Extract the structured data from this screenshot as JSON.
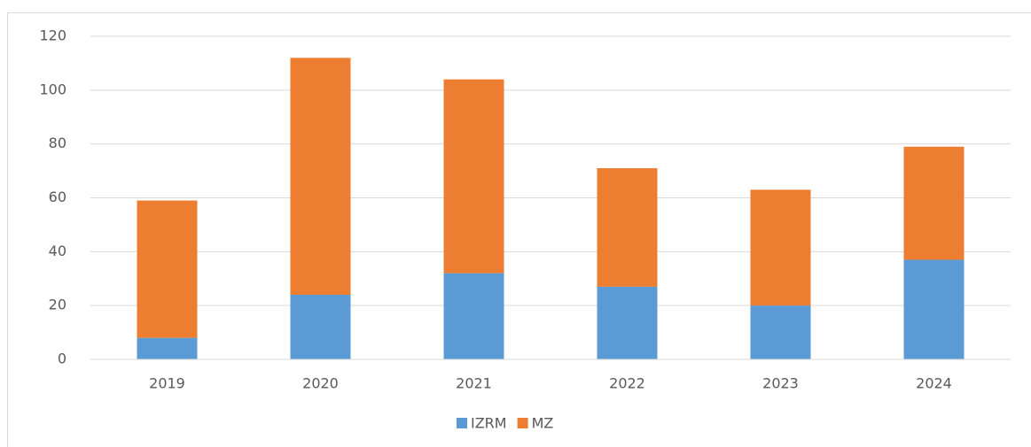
{
  "chart_data": {
    "type": "bar",
    "stacked": true,
    "categories": [
      "2019",
      "2020",
      "2021",
      "2022",
      "2023",
      "2024"
    ],
    "series": [
      {
        "name": "IZRM",
        "color": "#5b9bd5",
        "values": [
          8,
          24,
          32,
          27,
          20,
          37
        ]
      },
      {
        "name": "MZ",
        "color": "#ed7d31",
        "values": [
          51,
          88,
          72,
          44,
          43,
          42
        ]
      }
    ],
    "ylim": [
      0,
      120
    ],
    "yticks": [
      0,
      20,
      40,
      60,
      80,
      100,
      120
    ],
    "grid": true,
    "legend": "bottom"
  }
}
